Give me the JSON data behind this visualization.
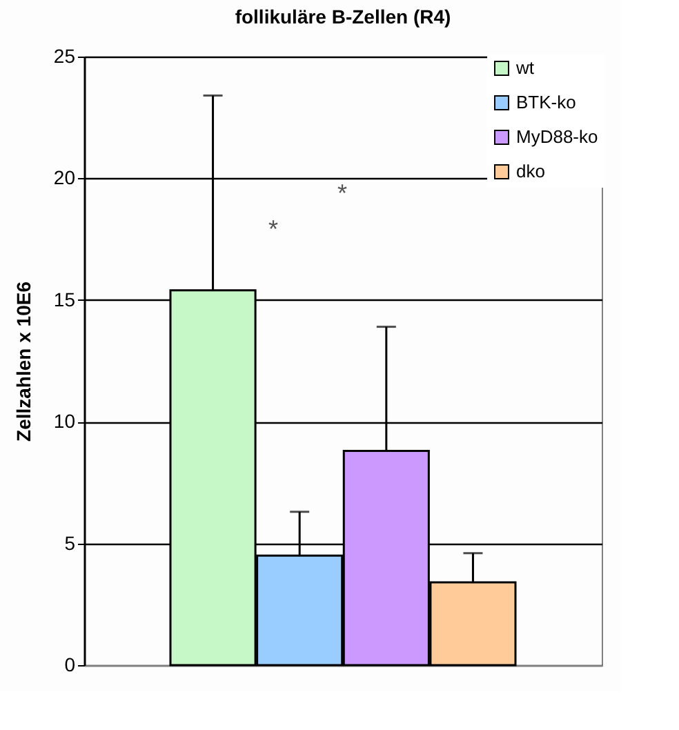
{
  "chart_data": {
    "type": "bar",
    "title": "follikuläre B-Zellen (R4)",
    "ylabel": "Zellzahlen x 10E6",
    "categories": [
      null
    ],
    "series": [
      {
        "name": "wt",
        "color": "#c6f7c6",
        "values": [
          15.4
        ],
        "errors": [
          [
            15.4,
            23.4
          ]
        ]
      },
      {
        "name": "BTK-ko",
        "color": "#99ccff",
        "values": [
          4.5
        ],
        "errors": [
          [
            4.5,
            6.3
          ]
        ]
      },
      {
        "name": "MyD88-ko",
        "color": "#cc99ff",
        "values": [
          8.8
        ],
        "errors": [
          [
            8.8,
            13.9
          ]
        ]
      },
      {
        "name": "dko",
        "color": "#ffcc99",
        "values": [
          3.4
        ],
        "errors": [
          [
            3.4,
            4.6
          ]
        ]
      }
    ],
    "ylim": [
      0,
      25
    ],
    "yticks": [
      0,
      5,
      10,
      15,
      20,
      25
    ],
    "grid": "y",
    "legend": "top right",
    "annotations": [
      "*",
      "*"
    ]
  }
}
